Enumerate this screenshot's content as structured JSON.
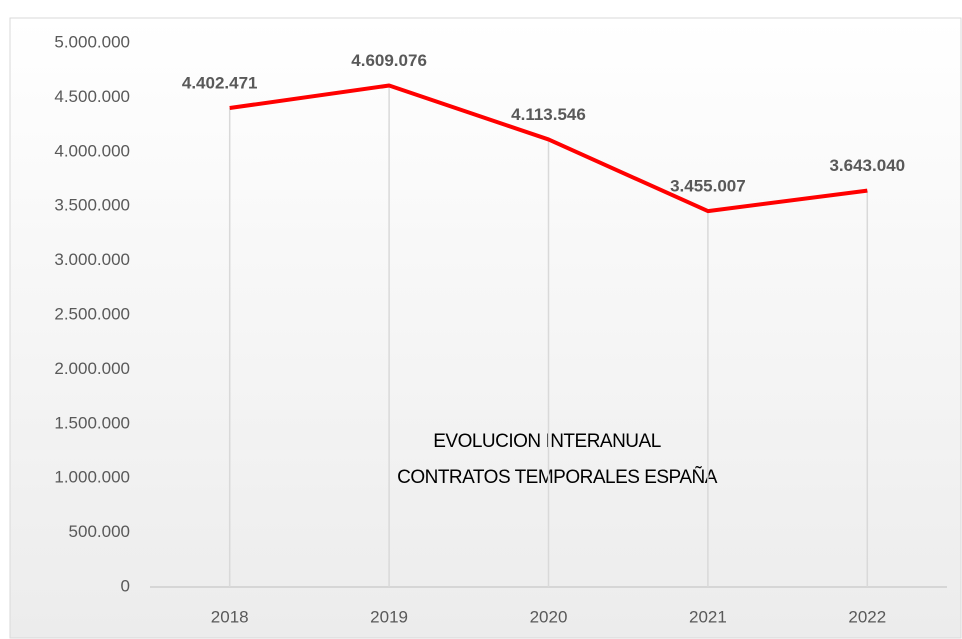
{
  "chart_data": {
    "type": "line",
    "title": [
      "EVOLUCION INTERANUAL",
      "CONTRATOS TEMPORALES ESPAÑA"
    ],
    "categories": [
      "2018",
      "2019",
      "2020",
      "2021",
      "2022"
    ],
    "series": [
      {
        "name": "Contratos temporales",
        "color": "#ff0000",
        "values": [
          4402471,
          4609076,
          4113546,
          3455007,
          3643040
        ],
        "value_labels": [
          "4.402.471",
          "4.609.076",
          "4.113.546",
          "3.455.007",
          "3.643.040"
        ]
      }
    ],
    "ylim": [
      0,
      5000000
    ],
    "yticks": [
      0,
      {
        "value": 500000,
        "label": "500.000"
      },
      {
        "value": 1000000,
        "label": "1.000.000"
      },
      {
        "value": 1500000,
        "label": "1.500.000"
      },
      {
        "value": 2000000,
        "label": "2.000.000"
      },
      {
        "value": 2500000,
        "label": "2.500.000"
      },
      {
        "value": 3000000,
        "label": "3.000.000"
      },
      {
        "value": 3500000,
        "label": "3.500.000"
      },
      {
        "value": 4000000,
        "label": "4.000.000"
      },
      {
        "value": 4500000,
        "label": "4.500.000"
      },
      {
        "value": 5000000,
        "label": "5.000.000"
      }
    ],
    "drop_lines": true
  }
}
